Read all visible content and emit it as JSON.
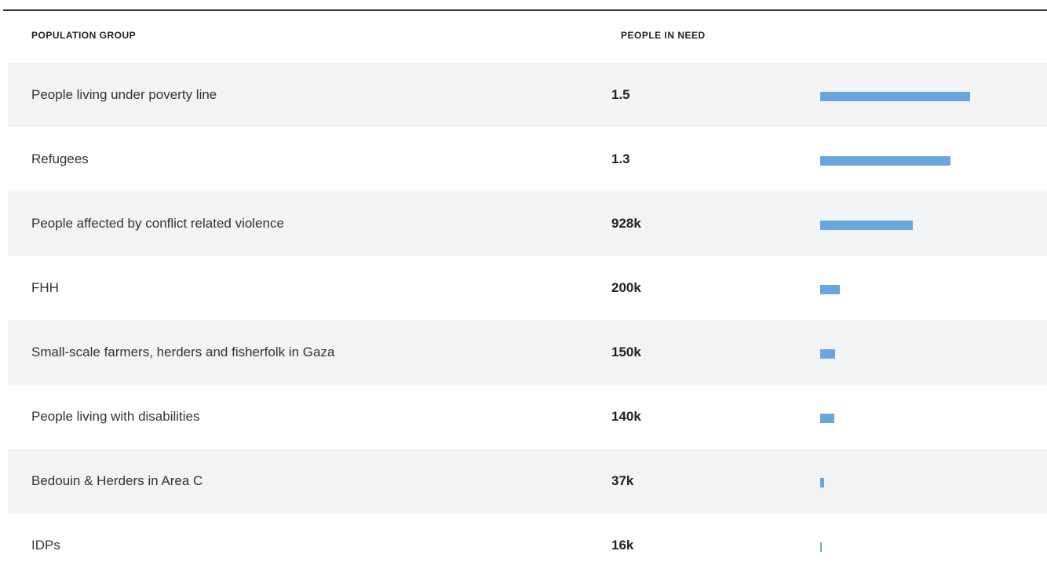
{
  "table": {
    "columns": [
      "POPULATION GROUP",
      "PEOPLE IN NEED"
    ],
    "rows": [
      {
        "label": "People living under poverty line",
        "value_label": "1.5",
        "value": 1.5
      },
      {
        "label": "Refugees",
        "value_label": "1.3",
        "value": 1.3
      },
      {
        "label": "People affected by conflict related violence",
        "value_label": "928k",
        "value": 0.928
      },
      {
        "label": "FHH",
        "value_label": "200k",
        "value": 0.2
      },
      {
        "label": "Small-scale farmers, herders and fisherfolk in Gaza",
        "value_label": "150k",
        "value": 0.15
      },
      {
        "label": "People living with disabilities",
        "value_label": "140k",
        "value": 0.14
      },
      {
        "label": "Bedouin & Herders in Area C",
        "value_label": "37k",
        "value": 0.037
      },
      {
        "label": "IDPs",
        "value_label": "16k",
        "value": 0.016
      }
    ],
    "bar_color": "#6aa6dc"
  }
}
